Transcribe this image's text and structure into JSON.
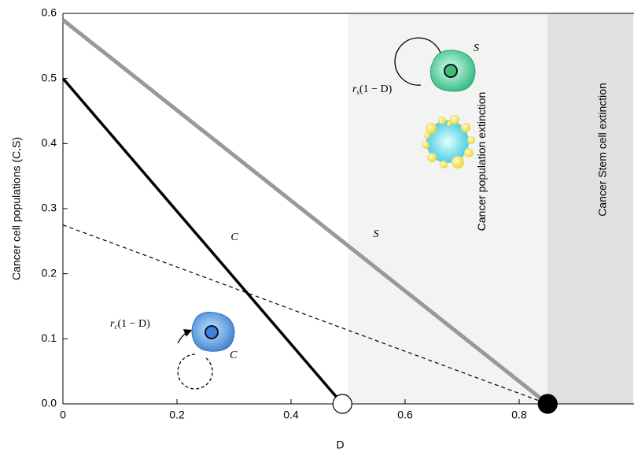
{
  "chart_data": {
    "type": "line",
    "x_label": "D",
    "y_label": "Cancer cell populations (C,S)",
    "xlim": [
      0,
      1
    ],
    "ylim": [
      0,
      0.6
    ],
    "xticks": [
      0,
      0.2,
      0.4,
      0.6,
      0.8
    ],
    "yticks": [
      {
        "value": 0,
        "label": "0.0"
      },
      0.1,
      0.2,
      0.3,
      0.4,
      0.5,
      0.6
    ],
    "regions": [
      {
        "label": "Cancer population extinction",
        "x": [
          0.5,
          0.85
        ],
        "color": "#f3f3f3"
      },
      {
        "label": "Cancer Stem cell extinction",
        "x": [
          0.85,
          1
        ],
        "color": "#e1e1e1"
      }
    ],
    "series": [
      {
        "name": "C",
        "x": [
          0,
          0.49
        ],
        "values": [
          0.5,
          0
        ],
        "color": "#000000",
        "width": 3.5,
        "dashed": false
      },
      {
        "name": "S",
        "x": [
          0,
          0.85
        ],
        "values": [
          0.59,
          0
        ],
        "color": "#999999",
        "width": 5,
        "dashed": false
      },
      {
        "x": [
          0,
          0.85
        ],
        "values": [
          0.275,
          0
        ],
        "color": "#000000",
        "width": 1.2,
        "dashed": true
      }
    ],
    "points": [
      {
        "x": 0.49,
        "y": 0,
        "fill": "#ffffff"
      },
      {
        "x": 0.85,
        "y": 0,
        "fill": "#000000"
      }
    ],
    "cell_labels": {
      "c_rate": {
        "r": "r",
        "sub": "c",
        "tail": "(1 − D)"
      },
      "s_rate": {
        "r": "r",
        "sub": "s",
        "tail": "(1 − D)"
      },
      "c_cell": "C",
      "s_cell": "S"
    }
  }
}
